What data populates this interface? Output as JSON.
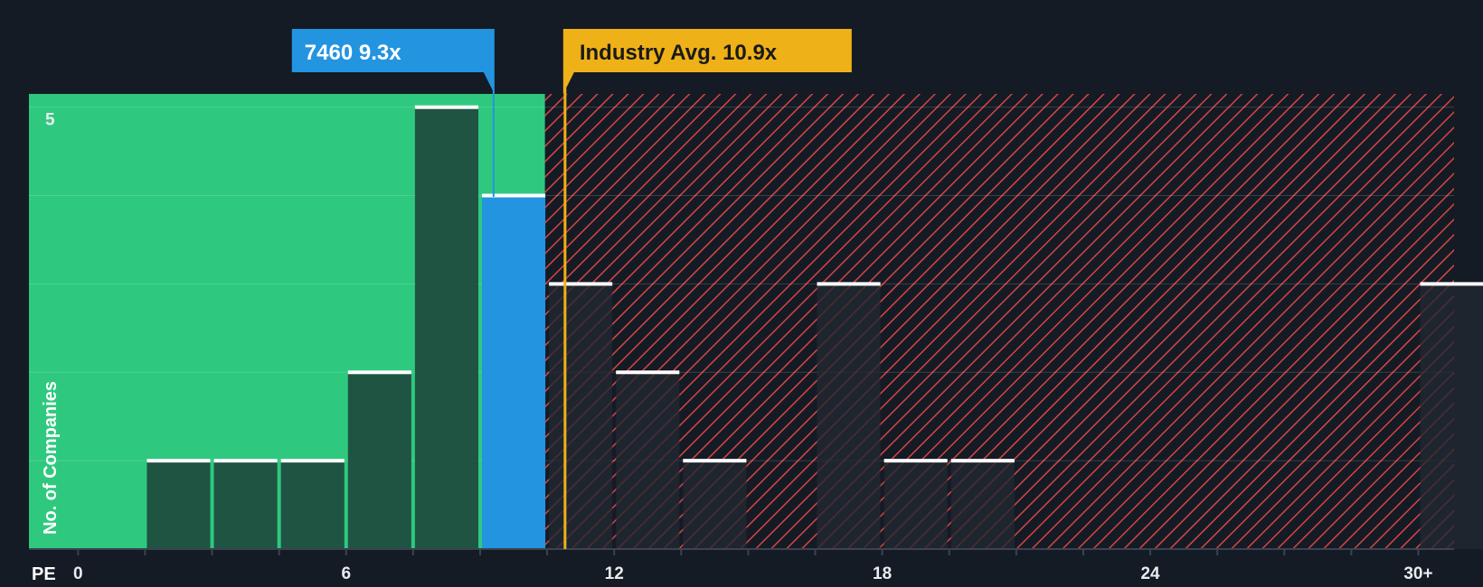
{
  "colors": {
    "background": "#151b24",
    "undervalued_zone": "#2ec97e",
    "overvalued_hatch": "#d64545",
    "company": "#2394e0",
    "industry": "#efb118",
    "bar_in_green": "#1e4a3e",
    "bar_in_dark": "#222831",
    "bar_cap": "#ffffff"
  },
  "chart_data": {
    "type": "bar",
    "xlabel": "PE",
    "ylabel": "No. of Companies",
    "x_ticks": [
      {
        "value": 0,
        "label": "0"
      },
      {
        "value": 6,
        "label": "6"
      },
      {
        "value": 12,
        "label": "12"
      },
      {
        "value": 18,
        "label": "18"
      },
      {
        "value": 24,
        "label": "24"
      },
      {
        "value": 30,
        "label": "30+"
      }
    ],
    "xlim": [
      -1.1,
      30.8
    ],
    "ylim": [
      0,
      5.15
    ],
    "y_ticks": [
      {
        "value": 5,
        "label": "5"
      }
    ],
    "gridlines_y": [
      1,
      2,
      3,
      4,
      5
    ],
    "bin_width": 1.5,
    "bins": [
      {
        "start": 1.5,
        "count": 1
      },
      {
        "start": 3.0,
        "count": 1
      },
      {
        "start": 4.5,
        "count": 1
      },
      {
        "start": 6.0,
        "count": 2
      },
      {
        "start": 7.5,
        "count": 5
      },
      {
        "start": 9.0,
        "count": 4,
        "highlight": true
      },
      {
        "start": 10.5,
        "count": 3
      },
      {
        "start": 12.0,
        "count": 2
      },
      {
        "start": 13.5,
        "count": 1
      },
      {
        "start": 16.5,
        "count": 3
      },
      {
        "start": 18.0,
        "count": 1
      },
      {
        "start": 19.5,
        "count": 1
      },
      {
        "start": 30.0,
        "count": 3
      }
    ],
    "undervalued_until": 10.45,
    "company": {
      "label": "7460 9.3x",
      "value": 9.3
    },
    "industry": {
      "label": "Industry Avg. 10.9x",
      "value": 10.9
    }
  }
}
